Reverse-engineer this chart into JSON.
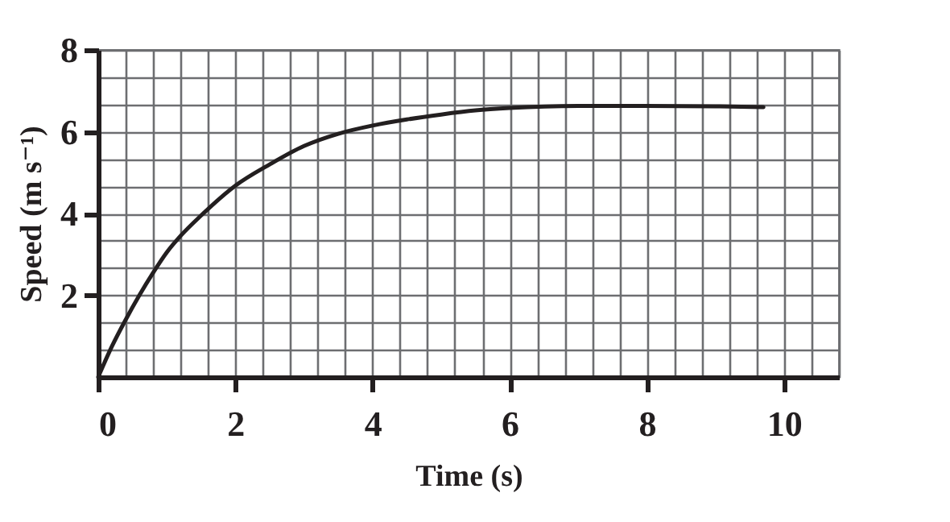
{
  "chart_data": {
    "type": "line",
    "xlabel": "Time (s)",
    "ylabel": "Speed (m s⁻¹)",
    "x": [
      0,
      0.2,
      0.4,
      0.6,
      0.8,
      1.0,
      1.2,
      1.5,
      2,
      2.5,
      3,
      3.5,
      4,
      4.5,
      5,
      5.5,
      6,
      7,
      8,
      9,
      9.7
    ],
    "series": [
      {
        "color": "#231f20",
        "values": [
          0,
          0.75,
          1.4,
          2.0,
          2.55,
          3.05,
          3.45,
          3.95,
          4.68,
          5.2,
          5.65,
          5.95,
          6.15,
          6.3,
          6.42,
          6.52,
          6.58,
          6.63,
          6.63,
          6.62,
          6.6
        ]
      }
    ],
    "xlim": [
      0,
      10.8
    ],
    "ylim": [
      0,
      8
    ],
    "xticks": [
      "0",
      {
        "value": 0.4,
        "label": null
      },
      {
        "value": 0.8,
        "label": null
      },
      {
        "value": 1.2,
        "label": null
      },
      {
        "value": 1.6,
        "label": null
      },
      2,
      {
        "value": 2.4,
        "label": null
      },
      {
        "value": 2.8,
        "label": null
      },
      {
        "value": 3.2,
        "label": null
      },
      {
        "value": 3.6,
        "label": null
      },
      4,
      {
        "value": 4.4,
        "label": null
      },
      {
        "value": 4.8,
        "label": null
      },
      {
        "value": 5.2,
        "label": null
      },
      {
        "value": 5.6,
        "label": null
      },
      6,
      {
        "value": 6.4,
        "label": null
      },
      {
        "value": 6.8,
        "label": null
      },
      {
        "value": 7.2,
        "label": null
      },
      {
        "value": 7.6,
        "label": null
      },
      8,
      {
        "value": 8.4,
        "label": null
      },
      {
        "value": 8.8,
        "label": null
      },
      {
        "value": 9.2,
        "label": null
      },
      {
        "value": 9.6,
        "label": null
      },
      10,
      {
        "value": 10.4,
        "label": null
      },
      {
        "value": 10.8,
        "label": null
      }
    ],
    "yticks": [
      {
        "value": 0,
        "label": null
      },
      {
        "value": 0.667,
        "label": null
      },
      {
        "value": 1.333,
        "label": null
      },
      2,
      {
        "value": 2.667,
        "label": null
      },
      {
        "value": 3.333,
        "label": null
      },
      4,
      {
        "value": 4.667,
        "label": null
      },
      {
        "value": 5.333,
        "label": null
      },
      6,
      {
        "value": 6.667,
        "label": null
      },
      {
        "value": 7.333,
        "label": null
      },
      8
    ],
    "grid": true,
    "marker": "none",
    "line_style": "solid"
  }
}
